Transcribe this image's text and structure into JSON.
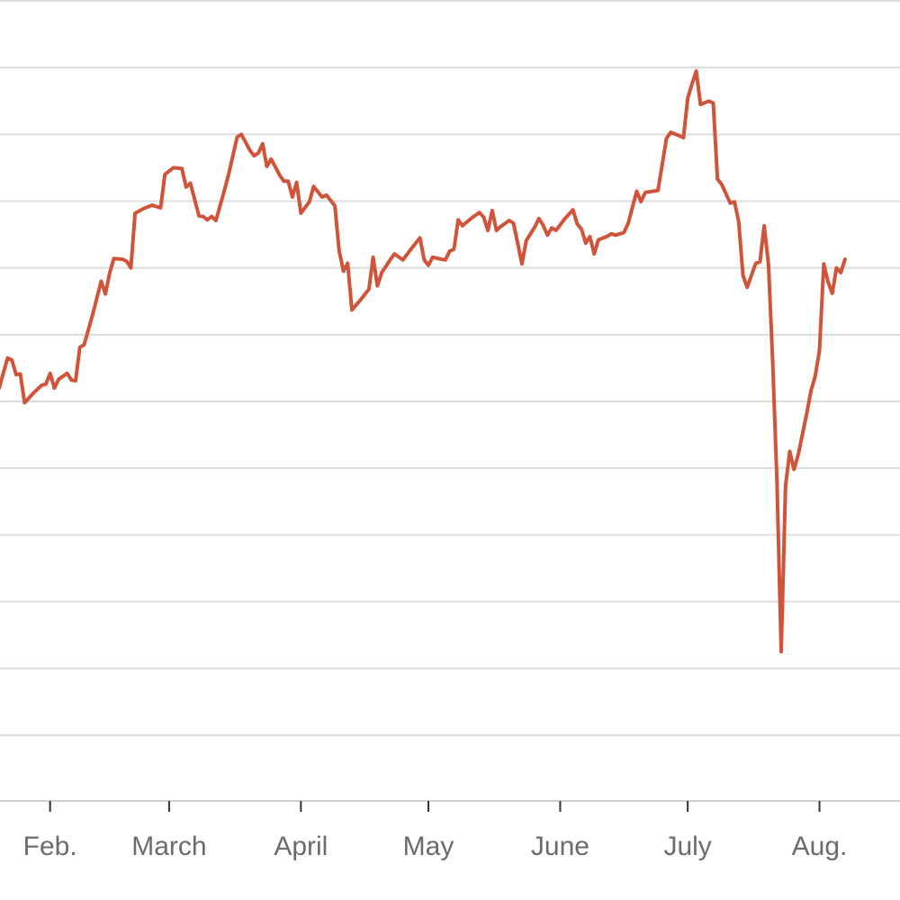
{
  "colors": {
    "series": "#d1533a",
    "grid": "#dcdcdc",
    "tick_label": "#6b6b6b"
  },
  "chart_data": {
    "type": "line",
    "title": "",
    "xlabel": "",
    "ylabel": "",
    "grid": true,
    "x_unit": "day of year",
    "x_tick_labels": [
      {
        "label": "Feb.",
        "x": 32
      },
      {
        "label": "March",
        "x": 60
      },
      {
        "label": "April",
        "x": 91
      },
      {
        "label": "May",
        "x": 121
      },
      {
        "label": "June",
        "x": 152
      },
      {
        "label": "July",
        "x": 182
      },
      {
        "label": "Aug.",
        "x": 213
      }
    ],
    "xlim": [
      20,
      233
    ],
    "ylim": [
      0,
      12
    ],
    "y_gridlines": [
      1,
      2,
      3,
      4,
      5,
      6,
      7,
      8,
      9,
      10,
      11,
      12
    ],
    "series": [
      {
        "points": [
          [
            20,
            6.2
          ],
          [
            22,
            6.65
          ],
          [
            23,
            6.62
          ],
          [
            24,
            6.4
          ],
          [
            25,
            6.41
          ],
          [
            26,
            5.98
          ],
          [
            28,
            6.12
          ],
          [
            30,
            6.24
          ],
          [
            31,
            6.26
          ],
          [
            32,
            6.42
          ],
          [
            33,
            6.2
          ],
          [
            34,
            6.33
          ],
          [
            36,
            6.42
          ],
          [
            37,
            6.32
          ],
          [
            38,
            6.31
          ],
          [
            39,
            6.81
          ],
          [
            40,
            6.85
          ],
          [
            42,
            7.3
          ],
          [
            44,
            7.8
          ],
          [
            45,
            7.61
          ],
          [
            46,
            7.92
          ],
          [
            47,
            8.14
          ],
          [
            49,
            8.13
          ],
          [
            50,
            8.1
          ],
          [
            51,
            8.0
          ],
          [
            52,
            8.82
          ],
          [
            54,
            8.89
          ],
          [
            56,
            8.94
          ],
          [
            58,
            8.9
          ],
          [
            59,
            9.4
          ],
          [
            61,
            9.5
          ],
          [
            63,
            9.49
          ],
          [
            64,
            9.21
          ],
          [
            65,
            9.27
          ],
          [
            67,
            8.78
          ],
          [
            68,
            8.77
          ],
          [
            69,
            8.72
          ],
          [
            70,
            8.77
          ],
          [
            71,
            8.71
          ],
          [
            73,
            9.16
          ],
          [
            74,
            9.4
          ],
          [
            76,
            9.96
          ],
          [
            77,
            10.0
          ],
          [
            79,
            9.76
          ],
          [
            80,
            9.68
          ],
          [
            81,
            9.72
          ],
          [
            82,
            9.86
          ],
          [
            83,
            9.52
          ],
          [
            84,
            9.63
          ],
          [
            86,
            9.39
          ],
          [
            87,
            9.3
          ],
          [
            88,
            9.3
          ],
          [
            89,
            9.06
          ],
          [
            90,
            9.28
          ],
          [
            91,
            8.82
          ],
          [
            93,
            8.99
          ],
          [
            94,
            9.22
          ],
          [
            96,
            9.06
          ],
          [
            97,
            9.09
          ],
          [
            99,
            8.93
          ],
          [
            100,
            8.26
          ],
          [
            101,
            7.95
          ],
          [
            102,
            8.07
          ],
          [
            103,
            7.37
          ],
          [
            105,
            7.52
          ],
          [
            107,
            7.68
          ],
          [
            108,
            8.16
          ],
          [
            109,
            7.73
          ],
          [
            110,
            7.93
          ],
          [
            112,
            8.12
          ],
          [
            113,
            8.21
          ],
          [
            115,
            8.12
          ],
          [
            117,
            8.29
          ],
          [
            119,
            8.45
          ],
          [
            120,
            8.12
          ],
          [
            121,
            8.04
          ],
          [
            122,
            8.16
          ],
          [
            124,
            8.13
          ],
          [
            125,
            8.12
          ],
          [
            126,
            8.25
          ],
          [
            127,
            8.28
          ],
          [
            128,
            8.72
          ],
          [
            129,
            8.63
          ],
          [
            131,
            8.74
          ],
          [
            133,
            8.83
          ],
          [
            134,
            8.76
          ],
          [
            135,
            8.56
          ],
          [
            136,
            8.86
          ],
          [
            137,
            8.56
          ],
          [
            138,
            8.62
          ],
          [
            140,
            8.71
          ],
          [
            141,
            8.67
          ],
          [
            142,
            8.37
          ],
          [
            143,
            8.06
          ],
          [
            144,
            8.41
          ],
          [
            146,
            8.61
          ],
          [
            147,
            8.74
          ],
          [
            148,
            8.64
          ],
          [
            149,
            8.49
          ],
          [
            150,
            8.6
          ],
          [
            151,
            8.56
          ],
          [
            153,
            8.73
          ],
          [
            155,
            8.87
          ],
          [
            156,
            8.66
          ],
          [
            157,
            8.58
          ],
          [
            158,
            8.37
          ],
          [
            159,
            8.47
          ],
          [
            160,
            8.21
          ],
          [
            161,
            8.42
          ],
          [
            163,
            8.47
          ],
          [
            164,
            8.51
          ],
          [
            165,
            8.49
          ],
          [
            167,
            8.53
          ],
          [
            168,
            8.67
          ],
          [
            170,
            9.15
          ],
          [
            171,
            8.99
          ],
          [
            172,
            9.13
          ],
          [
            174,
            9.15
          ],
          [
            175,
            9.16
          ],
          [
            177,
            9.94
          ],
          [
            178,
            10.03
          ],
          [
            180,
            9.98
          ],
          [
            181,
            9.95
          ],
          [
            182,
            10.54
          ],
          [
            183,
            10.75
          ],
          [
            184,
            10.95
          ],
          [
            185,
            10.45
          ],
          [
            187,
            10.5
          ],
          [
            188,
            10.47
          ],
          [
            189,
            9.33
          ],
          [
            190,
            9.25
          ],
          [
            192,
            8.97
          ],
          [
            193,
            8.99
          ],
          [
            194,
            8.69
          ],
          [
            195,
            7.89
          ],
          [
            196,
            7.71
          ],
          [
            198,
            8.07
          ],
          [
            199,
            8.09
          ],
          [
            200,
            8.63
          ],
          [
            201,
            8.05
          ],
          [
            202,
            6.57
          ],
          [
            203,
            4.8
          ],
          [
            204,
            2.25
          ],
          [
            205,
            4.73
          ],
          [
            206,
            5.25
          ],
          [
            207,
            4.98
          ],
          [
            208,
            5.2
          ],
          [
            210,
            5.82
          ],
          [
            211,
            6.16
          ],
          [
            212,
            6.38
          ],
          [
            213,
            6.76
          ],
          [
            214,
            8.06
          ],
          [
            215,
            7.79
          ],
          [
            216,
            7.62
          ],
          [
            217,
            8.0
          ],
          [
            218,
            7.93
          ],
          [
            219,
            8.13
          ]
        ]
      }
    ]
  }
}
